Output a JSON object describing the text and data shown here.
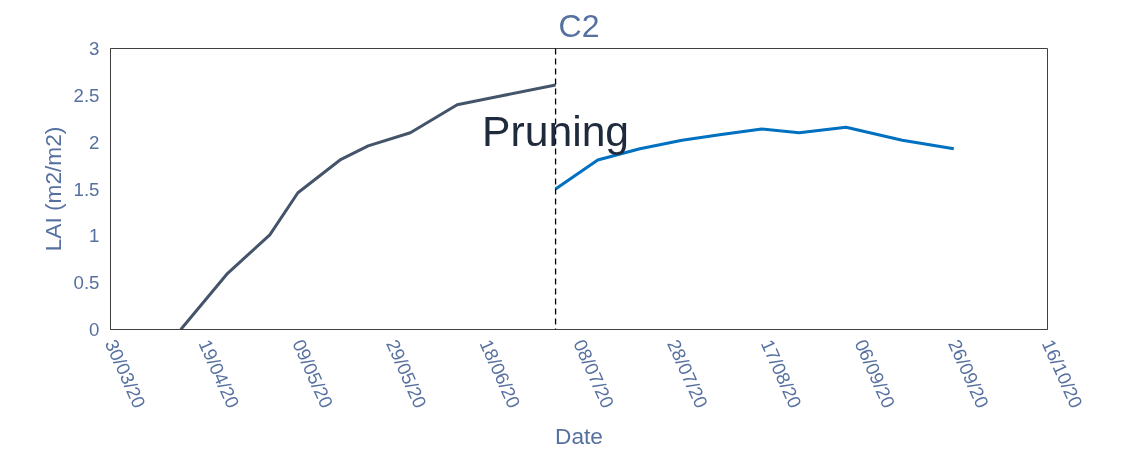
{
  "chart_data": {
    "type": "line",
    "title": "C2",
    "xlabel": "Date",
    "ylabel": "LAI (m2/m2)",
    "series": [
      {
        "color": "#44546a",
        "x": [
          "2020-04-14",
          "2020-04-24",
          "2020-05-03",
          "2020-05-09",
          "2020-05-18",
          "2020-05-24",
          "2020-06-02",
          "2020-06-12",
          "2020-06-21",
          "2020-07-03"
        ],
        "values": [
          0,
          0.6,
          1.01,
          1.46,
          1.81,
          1.96,
          2.1,
          2.4,
          2.49,
          2.61
        ]
      },
      {
        "color": "#0070c0",
        "x": [
          "2020-07-03",
          "2020-07-12",
          "2020-07-21",
          "2020-07-30",
          "2020-08-07",
          "2020-08-16",
          "2020-08-24",
          "2020-09-03",
          "2020-09-15",
          "2020-09-26"
        ],
        "values": [
          1.5,
          1.81,
          1.93,
          2.02,
          2.08,
          2.14,
          2.1,
          2.16,
          2.02,
          1.93
        ]
      }
    ],
    "xlim": [
      "2020-03-30",
      "2020-10-16"
    ],
    "xticks": [
      {
        "value": "2020-03-30",
        "label": "30/03/20"
      },
      {
        "value": "2020-04-19",
        "label": "19/04/20"
      },
      {
        "value": "2020-05-09",
        "label": "09/05/20"
      },
      {
        "value": "2020-05-29",
        "label": "29/05/20"
      },
      {
        "value": "2020-06-18",
        "label": "18/06/20"
      },
      {
        "value": "2020-07-08",
        "label": "08/07/20"
      },
      {
        "value": "2020-07-28",
        "label": "28/07/20"
      },
      {
        "value": "2020-08-17",
        "label": "17/08/20"
      },
      {
        "value": "2020-09-06",
        "label": "06/09/20"
      },
      {
        "value": "2020-09-26",
        "label": "26/09/20"
      },
      {
        "value": "2020-10-16",
        "label": "16/10/20"
      }
    ],
    "ylim": [
      0,
      3
    ],
    "yticks": [
      0,
      0.5,
      1,
      1.5,
      2,
      2.5,
      3
    ],
    "ref_lines": [
      {
        "axis": "x",
        "value": "2020-07-03",
        "label": "Pruning",
        "color": "#000000",
        "line_style": "dashed"
      }
    ],
    "grid": false,
    "line_style": "solid",
    "marker": "none"
  }
}
